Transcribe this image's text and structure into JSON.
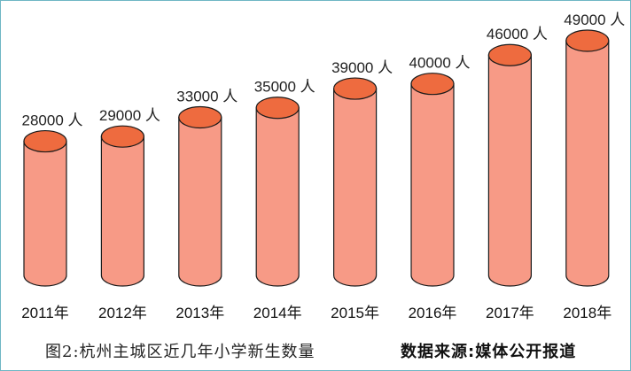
{
  "chart_data": {
    "type": "bar",
    "style": "3d-cylinder",
    "categories": [
      "2011年",
      "2012年",
      "2013年",
      "2014年",
      "2015年",
      "2016年",
      "2017年",
      "2018年"
    ],
    "values": [
      28000,
      29000,
      33000,
      35000,
      39000,
      40000,
      46000,
      49000
    ],
    "value_labels": [
      "28000 人",
      "29000 人",
      "33000 人",
      "35000 人",
      "39000 人",
      "40000 人",
      "46000 人",
      "49000 人"
    ],
    "ylim": [
      0,
      50000
    ],
    "grid": false,
    "colors": {
      "body": "#f79a86",
      "top": "#ee6b3f",
      "outline": "#1a1a1a"
    }
  },
  "caption": {
    "title": "图2:杭州主城区近几年小学新生数量",
    "source": "数据来源:媒体公开报道"
  }
}
